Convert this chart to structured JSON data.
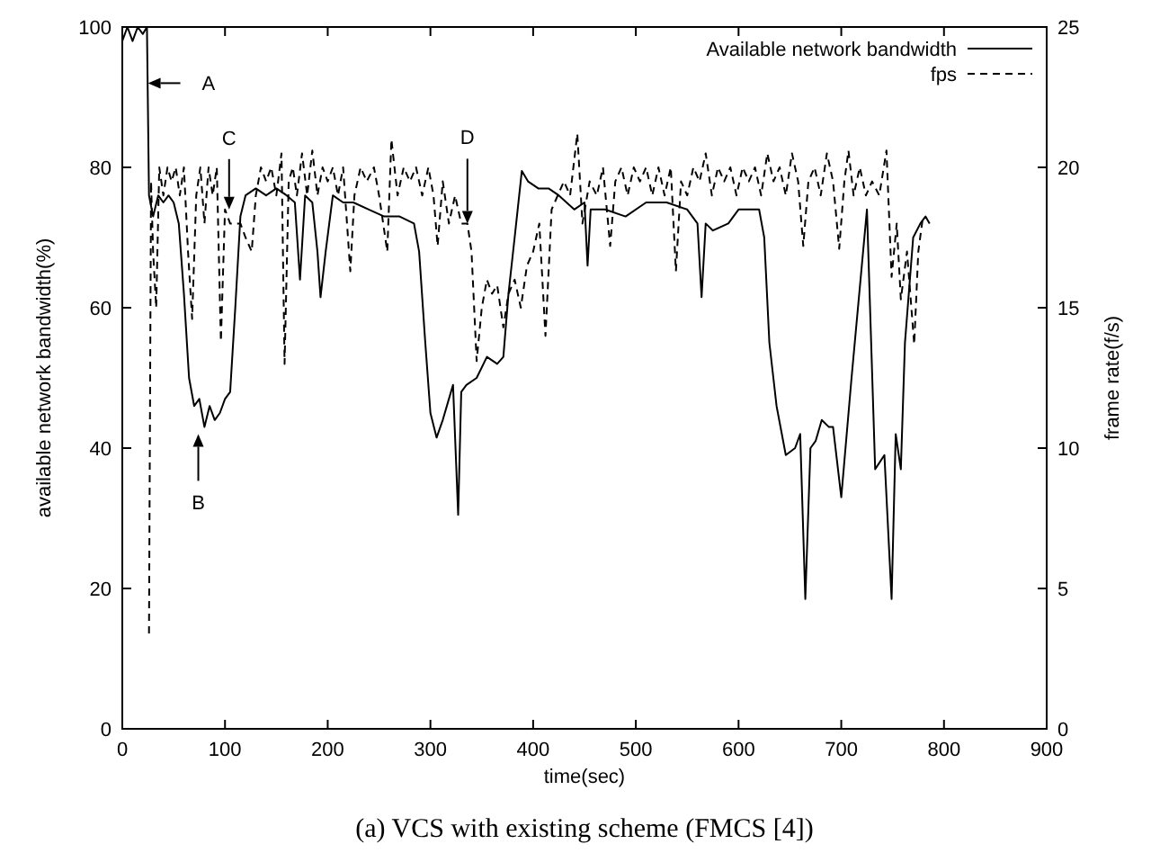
{
  "chart_data": {
    "type": "line",
    "title": "(a) VCS with existing scheme (FMCS [4])",
    "xlabel": "time(sec)",
    "ylabel": "available network bandwidth(%)",
    "y2label": "frame rate(f/s)",
    "xlim": [
      0,
      900
    ],
    "xticks": [
      0,
      100,
      200,
      300,
      400,
      500,
      600,
      700,
      800,
      900
    ],
    "ylim": [
      0,
      100
    ],
    "yticks": [
      0,
      20,
      40,
      60,
      80,
      100
    ],
    "y2lim": [
      0,
      25
    ],
    "y2ticks": [
      0,
      5,
      10,
      15,
      20,
      25
    ],
    "grid": false,
    "legend": "top right",
    "marker": "none",
    "annotations": [
      {
        "text": "A",
        "x": 25,
        "y": 92
      },
      {
        "text": "B",
        "x": 74,
        "y": 42
      },
      {
        "text": "C",
        "x": 104,
        "y": 74
      },
      {
        "text": "D",
        "x": 336,
        "y": 72
      }
    ],
    "series": [
      {
        "name": "Available network bandwidth",
        "color": "#000000",
        "line_style": "solid",
        "x": [
          0,
          5,
          10,
          15,
          20,
          24,
          26,
          30,
          35,
          40,
          45,
          50,
          55,
          60,
          65,
          70,
          75,
          80,
          85,
          90,
          95,
          100,
          105,
          110,
          115,
          120,
          130,
          140,
          150,
          160,
          168,
          173,
          178,
          185,
          190,
          193,
          198,
          205,
          215,
          225,
          240,
          255,
          270,
          284,
          289,
          295,
          300,
          306,
          312,
          318,
          322,
          327,
          330,
          335,
          345,
          355,
          365,
          371,
          376,
          382,
          389,
          395,
          405,
          415,
          425,
          440,
          450,
          453,
          456,
          470,
          490,
          510,
          530,
          550,
          560,
          564,
          568,
          575,
          590,
          600,
          615,
          620,
          625,
          630,
          637,
          646,
          655,
          660,
          665,
          670,
          675,
          681,
          688,
          692,
          700,
          710,
          725,
          733,
          742,
          749,
          753,
          758,
          762,
          770,
          777,
          782,
          786
        ],
        "values": [
          98,
          100,
          98,
          100,
          99,
          100,
          76,
          73,
          76,
          75,
          76,
          75,
          72,
          62,
          50,
          46,
          47,
          43,
          46,
          44,
          45,
          47,
          48,
          60,
          73,
          76,
          77,
          76,
          77,
          76,
          75,
          64,
          76,
          75,
          68,
          61.5,
          68,
          76,
          75,
          75,
          74,
          73,
          73,
          72,
          68,
          55,
          45,
          41.5,
          44,
          47,
          49,
          30.5,
          48,
          49,
          50,
          53,
          52,
          53,
          62,
          70,
          79.5,
          78,
          77,
          77,
          76,
          74,
          75,
          66,
          74,
          74,
          73,
          75,
          75,
          74,
          72,
          61.5,
          72,
          71,
          72,
          74,
          74,
          74,
          70,
          55,
          46,
          39,
          40,
          42,
          18.5,
          40,
          41,
          44,
          43,
          43,
          33,
          50,
          74,
          37,
          39,
          18.5,
          42,
          37,
          55,
          70,
          72,
          73,
          72
        ]
      },
      {
        "name": "fps",
        "color": "#000000",
        "line_style": "dashed",
        "axis": "y2",
        "x": [
          26,
          28,
          30,
          33,
          36,
          40,
          44,
          48,
          52,
          56,
          60,
          64,
          68,
          72,
          76,
          80,
          84,
          88,
          92,
          96,
          100,
          105,
          110,
          115,
          120,
          126,
          130,
          135,
          140,
          145,
          150,
          155,
          158,
          162,
          166,
          170,
          175,
          180,
          185,
          190,
          195,
          200,
          205,
          210,
          215,
          222,
          226,
          232,
          238,
          245,
          250,
          258,
          262,
          268,
          274,
          280,
          286,
          292,
          298,
          303,
          307,
          312,
          318,
          324,
          330,
          336,
          340,
          345,
          350,
          355,
          360,
          365,
          371,
          376,
          382,
          388,
          394,
          400,
          406,
          412,
          418,
          424,
          430,
          436,
          443,
          448,
          455,
          462,
          468,
          475,
          480,
          486,
          492,
          498,
          504,
          510,
          516,
          522,
          528,
          534,
          539,
          544,
          550,
          556,
          562,
          568,
          574,
          580,
          586,
          592,
          598,
          604,
          610,
          616,
          622,
          628,
          634,
          640,
          646,
          652,
          658,
          663,
          668,
          674,
          680,
          686,
          692,
          698,
          703,
          707,
          712,
          718,
          724,
          730,
          737,
          744,
          749,
          754,
          758,
          764,
          771,
          775,
          779
        ],
        "values": [
          3.4,
          19.5,
          17,
          15,
          20,
          19,
          20,
          19.5,
          20,
          19,
          20,
          17,
          14.6,
          19,
          20,
          18,
          20,
          19,
          20,
          13.8,
          18.5,
          18,
          18,
          18,
          17.5,
          17,
          19,
          20,
          19.5,
          20,
          19,
          20.5,
          13,
          19.5,
          20,
          19,
          20.5,
          19,
          20.6,
          19,
          20,
          19.5,
          20,
          19,
          20,
          16.3,
          19,
          20,
          19.5,
          20,
          19,
          17,
          21,
          19,
          20,
          19.5,
          20,
          19,
          20,
          19,
          17.2,
          19.5,
          18,
          19,
          18,
          18,
          17,
          13.1,
          15,
          16,
          15.5,
          15.8,
          14.3,
          15.5,
          16,
          15,
          16.5,
          17,
          18,
          14,
          18.5,
          19,
          19.5,
          19,
          21.2,
          18,
          19.5,
          19,
          20,
          17.2,
          19.5,
          20,
          19,
          20,
          19.5,
          20,
          19,
          20,
          19,
          20,
          16.3,
          19.5,
          19,
          20,
          19.5,
          20.5,
          19,
          20,
          19.5,
          20,
          19,
          20,
          19.5,
          20,
          19,
          20.5,
          19.5,
          20,
          19,
          20.5,
          19.5,
          17.2,
          19.5,
          20,
          19,
          20.5,
          19.5,
          17.1,
          19.5,
          20.6,
          19,
          20,
          19,
          19.5,
          19,
          20.6,
          16.1,
          18,
          15.3,
          17,
          13.7,
          17,
          18.1
        ]
      }
    ]
  }
}
